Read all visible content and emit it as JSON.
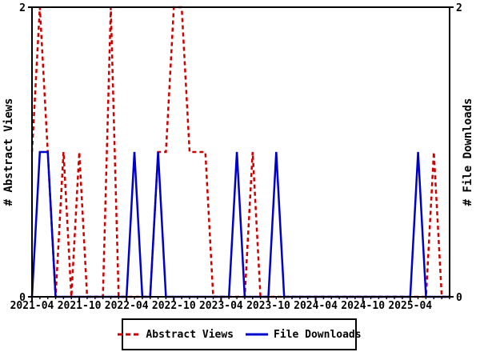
{
  "chart_data": {
    "type": "line",
    "x": [
      "2021-04",
      "2021-05",
      "2021-06",
      "2021-07",
      "2021-08",
      "2021-09",
      "2021-10",
      "2021-11",
      "2021-12",
      "2022-01",
      "2022-02",
      "2022-03",
      "2022-04",
      "2022-05",
      "2022-06",
      "2022-07",
      "2022-08",
      "2022-09",
      "2022-10",
      "2022-11",
      "2022-12",
      "2023-01",
      "2023-02",
      "2023-03",
      "2023-04",
      "2023-05",
      "2023-06",
      "2023-07",
      "2023-08",
      "2023-09",
      "2023-10",
      "2023-11",
      "2023-12",
      "2024-01",
      "2024-02",
      "2024-03",
      "2024-04",
      "2024-05",
      "2024-06",
      "2024-07",
      "2024-08",
      "2024-09",
      "2024-10",
      "2024-11",
      "2024-12",
      "2025-01",
      "2025-02",
      "2025-03",
      "2025-04",
      "2025-05",
      "2025-06",
      "2025-07",
      "2025-08",
      "2025-09"
    ],
    "series": [
      {
        "name": "Abstract Views",
        "color": "#cc0000",
        "style": "dashed",
        "values": [
          1,
          2,
          1,
          0,
          1,
          0,
          1,
          0,
          0,
          0,
          2,
          0,
          0,
          0,
          0,
          0,
          1,
          1,
          2,
          2,
          1,
          1,
          1,
          0,
          0,
          0,
          0,
          0,
          1,
          0,
          0,
          0,
          0,
          0,
          0,
          0,
          0,
          0,
          0,
          0,
          0,
          0,
          0,
          0,
          0,
          0,
          0,
          0,
          0,
          0,
          0,
          1,
          0,
          0
        ]
      },
      {
        "name": "File Downloads",
        "color": "#0000cc",
        "style": "solid",
        "values": [
          0,
          1,
          1,
          0,
          0,
          0,
          0,
          0,
          0,
          0,
          0,
          0,
          0,
          1,
          0,
          0,
          1,
          0,
          0,
          0,
          0,
          0,
          0,
          0,
          0,
          0,
          1,
          0,
          0,
          0,
          0,
          1,
          0,
          0,
          0,
          0,
          0,
          0,
          0,
          0,
          0,
          0,
          0,
          0,
          0,
          0,
          0,
          0,
          0,
          1,
          0,
          0,
          0,
          0
        ]
      }
    ],
    "title": "",
    "ylabel_left": "# Abstract Views",
    "ylabel_right": "# File Downloads",
    "ylim": [
      0,
      2
    ],
    "yticks": [
      0,
      2
    ],
    "xtick_labels": [
      "2021-04",
      "2021-10",
      "2022-04",
      "2022-10",
      "2023-04",
      "2023-10",
      "2024-04",
      "2024-10",
      "2025-04"
    ],
    "xtick_label_interval_months": 6,
    "grid": false,
    "legend_position": "bottom-center",
    "axis_color": "#000000",
    "background_color": "#ffffff"
  }
}
